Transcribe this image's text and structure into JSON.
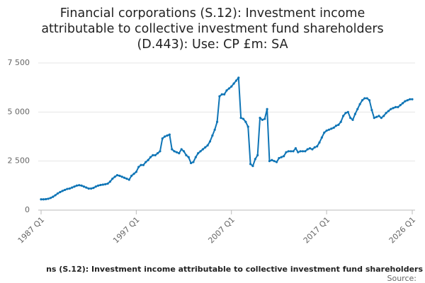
{
  "chart_data": {
    "type": "line",
    "title": [
      "Financial corporations (S.12): Investment income",
      "attributable to collective investment fund shareholders",
      "(D.443): Use: CP £m: SA"
    ],
    "footer": "ns (S.12): Investment income attributable to collective investment fund shareholders",
    "source": "Source:",
    "color": "#0f75b6",
    "categories": [
      "1987 Q1",
      null,
      null,
      null,
      null,
      null,
      null,
      null,
      null,
      null,
      null,
      null,
      null,
      null,
      null,
      null,
      null,
      null,
      null,
      null,
      null,
      null,
      null,
      null,
      null,
      null,
      null,
      null,
      null,
      null,
      null,
      null,
      null,
      null,
      null,
      null,
      null,
      null,
      null,
      null,
      "1997 Q1",
      null,
      null,
      null,
      null,
      null,
      null,
      null,
      null,
      null,
      null,
      null,
      null,
      null,
      null,
      null,
      null,
      null,
      null,
      null,
      null,
      null,
      null,
      null,
      null,
      null,
      null,
      null,
      null,
      null,
      null,
      null,
      null,
      null,
      null,
      null,
      null,
      null,
      null,
      null,
      "2007 Q1",
      null,
      null,
      null,
      null,
      null,
      null,
      null,
      null,
      null,
      null,
      null,
      null,
      null,
      null,
      null,
      null,
      null,
      null,
      null,
      null,
      null,
      null,
      null,
      null,
      null,
      null,
      null,
      null,
      null,
      null,
      null,
      null,
      null,
      null,
      null,
      null,
      null,
      null,
      null,
      "2017 Q1",
      null,
      null,
      null,
      null,
      null,
      null,
      null,
      null,
      null,
      null,
      null,
      null,
      null,
      null,
      null,
      null,
      null,
      null,
      null,
      null,
      null,
      null,
      null,
      null,
      null,
      null,
      null,
      null,
      null,
      null,
      null,
      null,
      null,
      null,
      null,
      "2026 Q1"
    ],
    "values": [
      550,
      550,
      560,
      580,
      620,
      680,
      760,
      850,
      920,
      980,
      1030,
      1080,
      1100,
      1150,
      1200,
      1250,
      1270,
      1250,
      1200,
      1150,
      1100,
      1100,
      1130,
      1200,
      1250,
      1280,
      1300,
      1320,
      1350,
      1450,
      1600,
      1700,
      1780,
      1750,
      1700,
      1650,
      1600,
      1550,
      1750,
      1850,
      1950,
      2200,
      2300,
      2300,
      2450,
      2550,
      2700,
      2800,
      2800,
      2900,
      3000,
      3650,
      3750,
      3800,
      3850,
      3100,
      3000,
      2950,
      2900,
      3100,
      3000,
      2800,
      2700,
      2400,
      2450,
      2700,
      2900,
      3000,
      3100,
      3200,
      3300,
      3500,
      3800,
      4100,
      4500,
      5800,
      5900,
      5900,
      6100,
      6200,
      6300,
      6450,
      6600,
      6750,
      4700,
      4650,
      4500,
      4250,
      2350,
      2250,
      2600,
      2800,
      4700,
      4600,
      4650,
      5150,
      2500,
      2550,
      2500,
      2450,
      2650,
      2700,
      2750,
      2950,
      3000,
      3000,
      3000,
      3150,
      2950,
      3000,
      3000,
      3000,
      3100,
      3150,
      3100,
      3200,
      3250,
      3450,
      3700,
      3950,
      4050,
      4100,
      4150,
      4200,
      4300,
      4350,
      4500,
      4800,
      4950,
      5000,
      4700,
      4600,
      4900,
      5150,
      5400,
      5600,
      5700,
      5700,
      5600,
      5100,
      4700,
      4750,
      4800,
      4700,
      4800,
      4950,
      5050,
      5150,
      5200,
      5250,
      5250,
      5350,
      5450,
      5550,
      5600,
      5650,
      5650
    ],
    "ylim": [
      0,
      7500
    ],
    "yticks": [
      0,
      {
        "value": 2500,
        "label": "2 500"
      },
      {
        "value": 5000,
        "label": "5 000"
      },
      {
        "value": 7500,
        "label": "7 500"
      }
    ],
    "grid": true
  }
}
